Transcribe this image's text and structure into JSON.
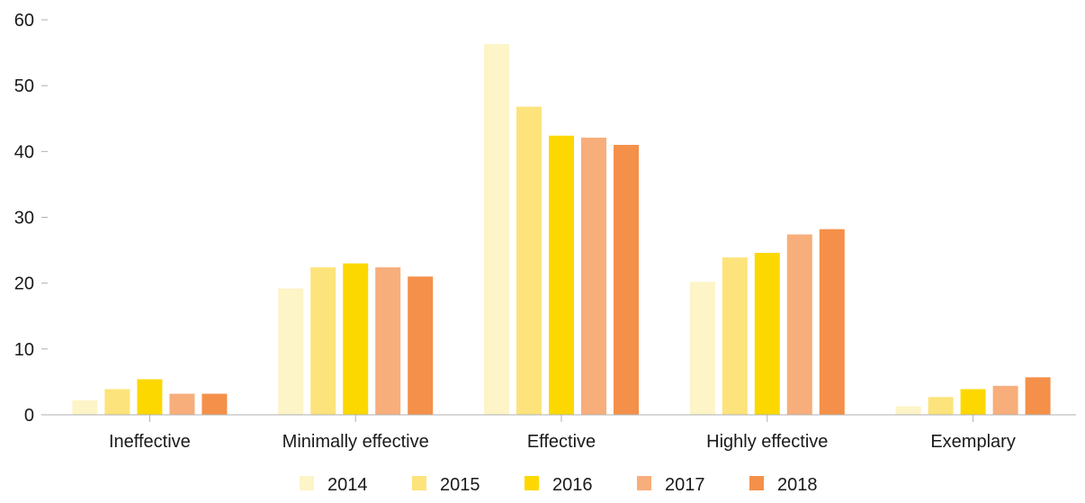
{
  "chart_data": {
    "type": "bar",
    "title": "",
    "xlabel": "",
    "ylabel": "",
    "ylim": [
      0,
      60
    ],
    "yticks": [
      0,
      10,
      20,
      30,
      40,
      50,
      60
    ],
    "grid": false,
    "legend_position": "bottom",
    "categories": [
      "Ineffective",
      "Minimally effective",
      "Effective",
      "Highly effective",
      "Exemplary"
    ],
    "series": [
      {
        "name": "2014",
        "color": "#fdf4c7",
        "values": [
          2.2,
          19.2,
          56.3,
          20.2,
          1.3
        ]
      },
      {
        "name": "2015",
        "color": "#fde37b",
        "values": [
          3.9,
          22.4,
          46.8,
          23.9,
          2.7
        ]
      },
      {
        "name": "2016",
        "color": "#fdd800",
        "values": [
          5.4,
          23.0,
          42.4,
          24.6,
          3.9
        ]
      },
      {
        "name": "2017",
        "color": "#f7ae7b",
        "values": [
          3.2,
          22.4,
          42.1,
          27.4,
          4.4
        ]
      },
      {
        "name": "2018",
        "color": "#f49049",
        "values": [
          3.2,
          21.0,
          41.0,
          28.2,
          5.7
        ]
      }
    ]
  }
}
